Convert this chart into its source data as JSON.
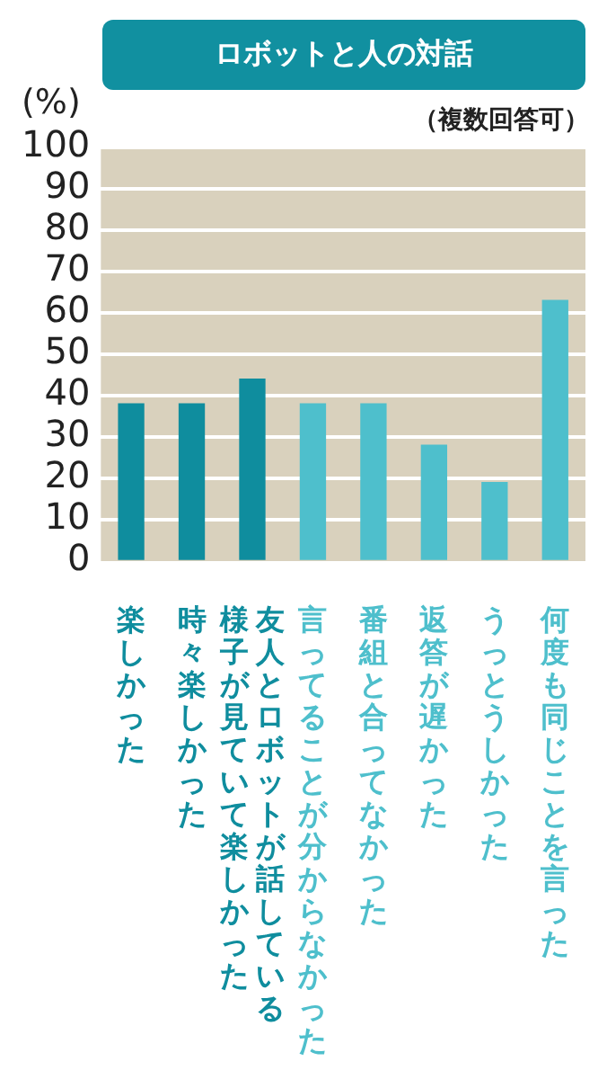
{
  "chart_data": {
    "type": "bar",
    "title": "ロボットと人の対話",
    "subtitle": "（複数回答可）",
    "ylabel": "(%)",
    "categories": [
      "楽しかった",
      "時々楽しかった",
      "友人とロボットが話している様子が見ていて楽しかった",
      "言ってることが分からなかった",
      "番組と合ってなかった",
      "返答が遅かった",
      "うっとうしかった",
      "何度も同じことを言った"
    ],
    "values": [
      38,
      38,
      44,
      38,
      38,
      28,
      19,
      63
    ],
    "colors": [
      "#0f8d9e",
      "#0f8d9e",
      "#0f8d9e",
      "#4ebfcc",
      "#4ebfcc",
      "#4ebfcc",
      "#4ebfcc",
      "#4ebfcc"
    ],
    "ylim": [
      0,
      100
    ],
    "yticks": [
      0,
      10,
      20,
      30,
      40,
      50,
      60,
      70,
      80,
      90,
      100
    ],
    "grid": "y",
    "legend": false
  }
}
